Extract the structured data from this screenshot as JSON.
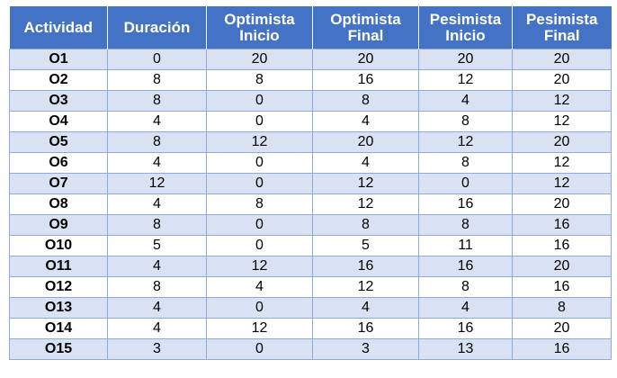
{
  "columns": [
    "Actividad",
    "Duración",
    "Optimista\nInicio",
    "Optimista\nFinal",
    "Pesimista\nInicio",
    "Pesimista\nFinal"
  ],
  "rows": [
    [
      "O1",
      "0",
      "20",
      "20",
      "20",
      "20"
    ],
    [
      "O2",
      "8",
      "8",
      "16",
      "12",
      "20"
    ],
    [
      "O3",
      "8",
      "0",
      "8",
      "4",
      "12"
    ],
    [
      "O4",
      "4",
      "0",
      "4",
      "8",
      "12"
    ],
    [
      "O5",
      "8",
      "12",
      "20",
      "12",
      "20"
    ],
    [
      "O6",
      "4",
      "0",
      "4",
      "8",
      "12"
    ],
    [
      "O7",
      "12",
      "0",
      "12",
      "0",
      "12"
    ],
    [
      "O8",
      "4",
      "8",
      "12",
      "16",
      "20"
    ],
    [
      "O9",
      "8",
      "0",
      "8",
      "8",
      "16"
    ],
    [
      "O10",
      "5",
      "0",
      "5",
      "11",
      "16"
    ],
    [
      "O11",
      "4",
      "12",
      "16",
      "16",
      "20"
    ],
    [
      "O12",
      "8",
      "4",
      "12",
      "8",
      "16"
    ],
    [
      "O13",
      "4",
      "0",
      "4",
      "4",
      "8"
    ],
    [
      "O14",
      "4",
      "12",
      "16",
      "16",
      "20"
    ],
    [
      "O15",
      "3",
      "0",
      "3",
      "13",
      "16"
    ]
  ],
  "colors": {
    "header_bg": "#4472c4",
    "stripe_bg": "#d9e2f3",
    "border": "#8eaadb"
  }
}
